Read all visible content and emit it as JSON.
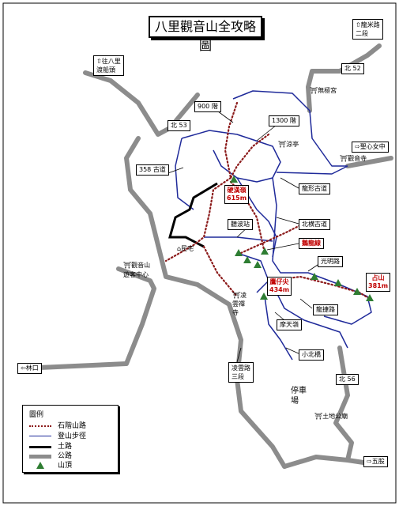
{
  "title": "八里觀音山全攻略圖",
  "directions": {
    "longmi": "龍米路\n二段",
    "bali_ferry": "往八里\n渡船頭",
    "linkou": "林口",
    "wugu": "五股",
    "shengxin": "聖心女中"
  },
  "roads": {
    "bei52": "北 52",
    "bei53": "北 53",
    "bei56": "北 56"
  },
  "trails": {
    "stairs_900": "900 階",
    "stairs_1300": "1300 階",
    "trail_358": "358 古道",
    "longxing": "龍形古道",
    "beiling": "北横古道",
    "tingbo": "聽波站",
    "guangming": "光明路",
    "longcheng": "龍捷路",
    "motian": "摩天嶺",
    "xiaobei": "小北橋",
    "linyun_road": "凌雲路\n三段"
  },
  "places": {
    "wujitemple": "無極宮",
    "liangting": "涼亭",
    "guanyin_temple": "觀音寺",
    "minzhai": "民宅",
    "visitor_center": "觀音山\n遊客中心",
    "linyun_temple": "凌\n雲禪\n寺",
    "parking": "停車\n場",
    "tudi": "土地公廟",
    "fenglin": "鷹仔尖"
  },
  "peaks": {
    "yinghan": {
      "name": "硬漢嶺",
      "height": "615m"
    },
    "yingzijian": {
      "name": "鷹仔尖",
      "height": "434m"
    },
    "zhanshan": {
      "name": "占山",
      "height": "381m"
    },
    "zhulong": "鵝龍線"
  },
  "legend": {
    "header": "圖例",
    "items": [
      {
        "label": "石階山路",
        "kind": "dotted",
        "color": "#8b1a1a"
      },
      {
        "label": "登山步徑",
        "kind": "line",
        "color": "#1f2a9a"
      },
      {
        "label": "土路",
        "kind": "thick",
        "color": "#000000"
      },
      {
        "label": "公路",
        "kind": "road",
        "color": "#8c8c8c"
      },
      {
        "label": "山頂",
        "kind": "triangle",
        "color": "#2e7d32"
      }
    ]
  }
}
